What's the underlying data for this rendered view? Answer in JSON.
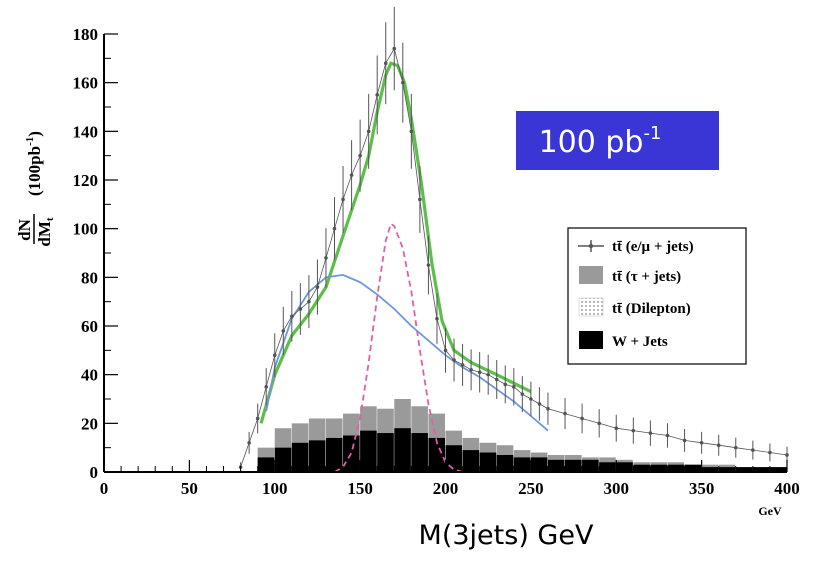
{
  "chart_data": {
    "type": "histogram",
    "xlabel": "M(3jets) GeV",
    "x_unit": "GeV",
    "ylabel_fraction_num": "dN",
    "ylabel_fraction_den": "dM",
    "ylabel_fraction_den_sub": "t",
    "ylabel_suffix": "(100pb",
    "ylabel_sup": "-1",
    "ylabel_close": ")",
    "xlim": [
      0,
      400
    ],
    "ylim": [
      0,
      180
    ],
    "x_ticks": [
      0,
      50,
      100,
      150,
      200,
      250,
      300,
      350,
      400
    ],
    "y_ticks": [
      0,
      20,
      40,
      60,
      80,
      100,
      120,
      140,
      160,
      180
    ],
    "badge": {
      "text": "100 pb",
      "sup": "-1",
      "color": "#3a36d6"
    },
    "legend": {
      "position": "right",
      "entries": [
        {
          "symbol": "errbar",
          "text": "tt̄ (e/μ + jets)"
        },
        {
          "symbol": "box-gray",
          "text": "tt̄ (τ + jets)"
        },
        {
          "symbol": "box-dotted",
          "text": "tt̄ (Dilepton)"
        },
        {
          "symbol": "box-black",
          "text": "W + Jets"
        }
      ]
    },
    "series": [
      {
        "name": "tt̄ (e/μ + jets)",
        "style": "points-with-errors",
        "color": "#555555",
        "x": [
          80,
          85,
          90,
          95,
          100,
          105,
          110,
          115,
          120,
          125,
          130,
          135,
          140,
          145,
          150,
          155,
          160,
          165,
          170,
          175,
          180,
          185,
          190,
          195,
          200,
          205,
          210,
          215,
          220,
          225,
          230,
          235,
          240,
          245,
          250,
          255,
          260,
          270,
          280,
          290,
          300,
          310,
          320,
          330,
          340,
          350,
          360,
          370,
          380,
          390,
          400
        ],
        "y": [
          2,
          12,
          22,
          35,
          48,
          58,
          64,
          67,
          70,
          76,
          88,
          100,
          112,
          122,
          130,
          140,
          155,
          168,
          174,
          160,
          140,
          112,
          85,
          63,
          50,
          46,
          44,
          42,
          41,
          40,
          38,
          36,
          35,
          32,
          30,
          28,
          26,
          24,
          22,
          20,
          18,
          17,
          16,
          15,
          13,
          12,
          11,
          10,
          9,
          8,
          7
        ]
      },
      {
        "name": "tt̄ (τ + jets)",
        "style": "bars",
        "color": "#9a9a9a",
        "x": [
          90,
          100,
          110,
          120,
          130,
          140,
          150,
          160,
          170,
          180,
          190,
          200,
          210,
          220,
          230,
          240,
          250,
          260,
          270,
          280,
          290,
          300,
          310,
          320,
          330,
          340,
          350,
          360,
          370,
          380,
          390
        ],
        "y": [
          10,
          18,
          20,
          22,
          22,
          24,
          27,
          26,
          30,
          27,
          24,
          17,
          14,
          12,
          11,
          9,
          8,
          7,
          7,
          6,
          6,
          5,
          4,
          4,
          4,
          3,
          3,
          3,
          2,
          2,
          2
        ]
      },
      {
        "name": "W + Jets",
        "style": "bars",
        "color": "#000000",
        "x": [
          90,
          100,
          110,
          120,
          130,
          140,
          150,
          160,
          170,
          180,
          190,
          200,
          210,
          220,
          230,
          240,
          250,
          260,
          270,
          280,
          290,
          300,
          310,
          320,
          330,
          340,
          350,
          360,
          370,
          380,
          390
        ],
        "y": [
          6,
          10,
          12,
          13,
          14,
          15,
          17,
          16,
          18,
          16,
          14,
          11,
          9,
          8,
          7,
          6,
          6,
          5,
          5,
          5,
          4,
          4,
          3,
          3,
          3,
          3,
          2,
          2,
          2,
          2,
          2
        ]
      },
      {
        "style": "fit-curve",
        "color": "#5bbf49",
        "x": [
          92,
          100,
          110,
          120,
          130,
          140,
          150,
          155,
          160,
          165,
          168,
          172,
          176,
          180,
          186,
          192,
          198,
          205,
          215,
          230,
          250
        ],
        "y": [
          20,
          40,
          56,
          65,
          76,
          97,
          118,
          130,
          148,
          163,
          168,
          167,
          160,
          145,
          118,
          86,
          62,
          50,
          45,
          40,
          33
        ]
      },
      {
        "style": "dashed-curve",
        "color": "#e05fa8",
        "x": [
          135,
          140,
          145,
          150,
          155,
          160,
          165,
          168,
          170,
          175,
          180,
          185,
          190,
          195,
          200,
          205,
          210
        ],
        "y": [
          0,
          2,
          8,
          22,
          45,
          72,
          95,
          102,
          101,
          92,
          74,
          50,
          28,
          12,
          4,
          1,
          0
        ]
      },
      {
        "style": "smooth-curve",
        "color": "#6f96d6",
        "x": [
          95,
          100,
          110,
          120,
          130,
          140,
          150,
          160,
          170,
          180,
          190,
          200,
          210,
          220,
          230,
          240,
          250,
          260
        ],
        "y": [
          25,
          43,
          63,
          74,
          80,
          81,
          78,
          73,
          67,
          60,
          54,
          48,
          43,
          39,
          34,
          29,
          23,
          17
        ]
      }
    ]
  }
}
